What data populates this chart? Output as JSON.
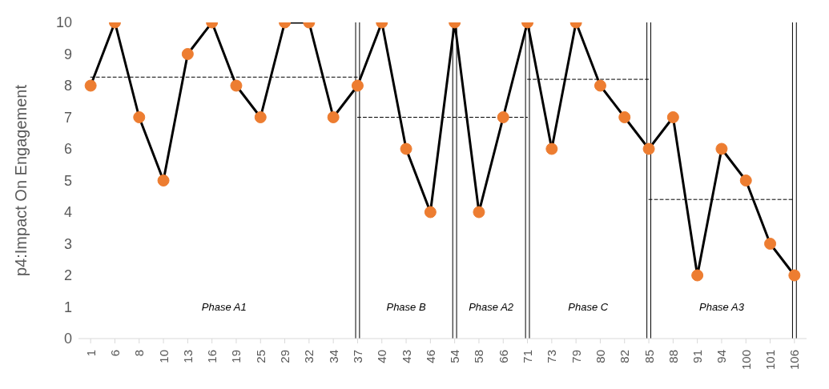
{
  "chart_data": {
    "type": "line",
    "ylabel": "p4:Impact On Engagement",
    "categories": [
      "1",
      "6",
      "8",
      "10",
      "13",
      "16",
      "19",
      "25",
      "29",
      "32",
      "34",
      "37",
      "40",
      "43",
      "46",
      "54",
      "58",
      "66",
      "71",
      "73",
      "79",
      "80",
      "82",
      "85",
      "88",
      "91",
      "94",
      "100",
      "101",
      "106"
    ],
    "series": [
      {
        "color": "#000000",
        "marker": "circle",
        "colors": [
          "#ed7d31",
          "#ed7d31",
          "#ed7d31",
          "#ed7d31",
          "#ed7d31",
          "#ed7d31",
          "#ed7d31",
          "#ed7d31",
          "#ed7d31",
          "#ed7d31",
          "#ed7d31",
          "#ed7d31",
          "#ed7d31",
          "#ed7d31",
          "#ed7d31",
          "#ed7d31",
          "#ed7d31",
          "#ed7d31",
          "#ed7d31",
          "#ed7d31",
          "#ed7d31",
          "#ed7d31",
          "#ed7d31",
          "#ed7d31",
          "#ed7d31",
          "#ed7d31",
          "#ed7d31",
          "#ed7d31",
          "#ed7d31",
          "#ed7d31"
        ],
        "values": [
          8,
          10,
          7,
          5,
          9,
          10,
          8,
          7,
          10,
          10,
          7,
          8,
          10,
          6,
          4,
          10,
          4,
          7,
          10,
          6,
          10,
          8,
          7,
          6,
          7,
          2,
          6,
          5,
          3,
          2
        ]
      },
      {
        "color": "#000000",
        "marker": "none",
        "line_style": "dashed",
        "x": [
          "1",
          "37"
        ],
        "values": [
          8.27,
          8.27
        ]
      },
      {
        "color": "#000000",
        "marker": "none",
        "line_style": "dashed",
        "x": [
          "37",
          "71"
        ],
        "values": [
          7,
          7
        ]
      },
      {
        "color": "#000000",
        "marker": "none",
        "line_style": "dashed",
        "x": [
          "71",
          "85"
        ],
        "values": [
          8.2,
          8.2
        ]
      },
      {
        "color": "#000000",
        "marker": "none",
        "line_style": "dashed",
        "x": [
          "85",
          "106"
        ],
        "values": [
          4.4,
          4.4
        ]
      }
    ],
    "ref_lines": [
      {
        "axis": "x",
        "value": "37",
        "color": "#000000"
      },
      {
        "axis": "x",
        "value": "54",
        "color": "#000000"
      },
      {
        "axis": "x",
        "value": "71",
        "color": "#000000"
      },
      {
        "axis": "x",
        "value": "85",
        "color": "#000000"
      },
      {
        "axis": "x",
        "value": "106",
        "color": "#000000"
      }
    ],
    "annotations": [
      "Phase A1",
      "Phase B",
      "Phase A2",
      "Phase C",
      "Phase A3"
    ],
    "ylim": [
      0,
      10
    ],
    "yticks": [
      0,
      1,
      2,
      3,
      4,
      5,
      6,
      7,
      8,
      9,
      10
    ]
  }
}
